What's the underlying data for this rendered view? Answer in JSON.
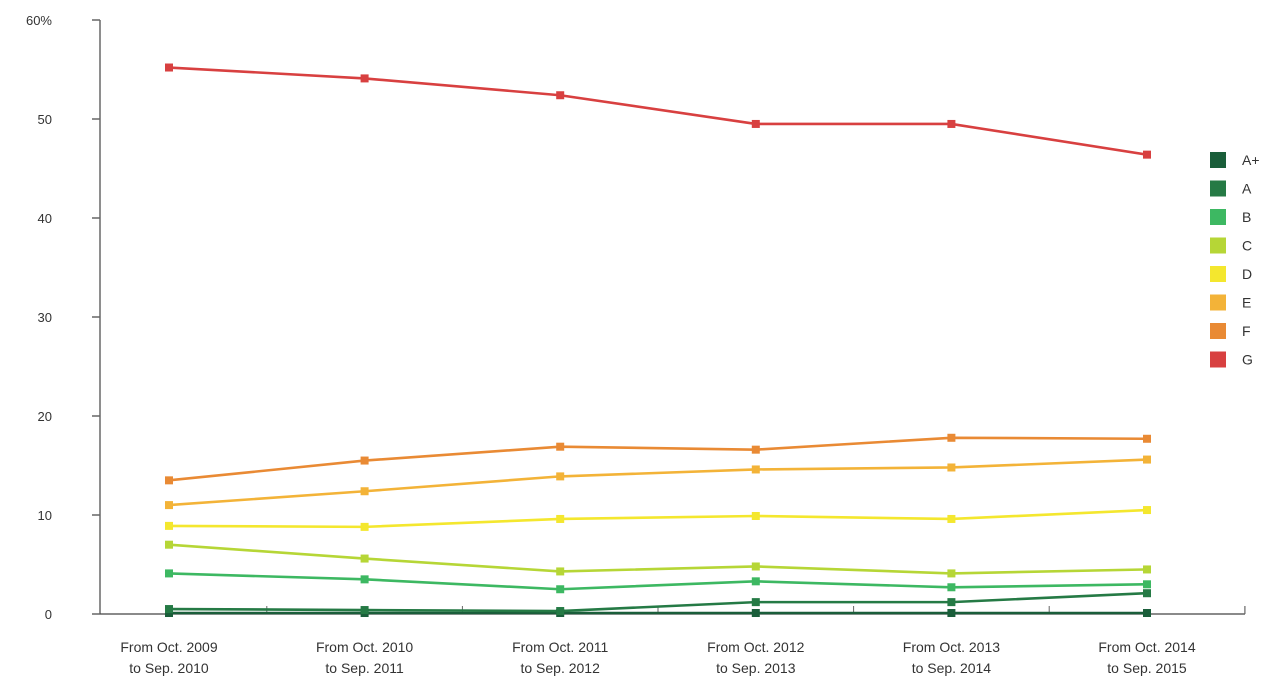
{
  "chart_data": {
    "type": "line",
    "categories": [
      [
        "From Oct. 2009",
        "to Sep. 2010"
      ],
      [
        "From Oct. 2010",
        "to Sep. 2011"
      ],
      [
        "From Oct. 2011",
        "to Sep. 2012"
      ],
      [
        "From Oct. 2012",
        "to Sep. 2013"
      ],
      [
        "From Oct. 2013",
        "to Sep. 2014"
      ],
      [
        "From Oct. 2014",
        "to Sep. 2015"
      ]
    ],
    "ylim": [
      0,
      60
    ],
    "yticks": [
      0,
      10,
      20,
      30,
      40,
      50,
      60
    ],
    "ytick_labels": [
      "0",
      "10",
      "20",
      "30",
      "40",
      "50",
      "60%"
    ],
    "grid": false,
    "legend_position": "right",
    "series": [
      {
        "name": "A+",
        "color": "#1a5e3a",
        "values": [
          0.1,
          0.1,
          0.1,
          0.1,
          0.1,
          0.1
        ]
      },
      {
        "name": "A",
        "color": "#257a45",
        "values": [
          0.5,
          0.4,
          0.3,
          1.2,
          1.2,
          2.1
        ]
      },
      {
        "name": "B",
        "color": "#3db862",
        "values": [
          4.1,
          3.5,
          2.5,
          3.3,
          2.7,
          3.0
        ]
      },
      {
        "name": "C",
        "color": "#b6d636",
        "values": [
          7.0,
          5.6,
          4.3,
          4.8,
          4.1,
          4.5
        ]
      },
      {
        "name": "D",
        "color": "#f4e72e",
        "values": [
          8.9,
          8.8,
          9.6,
          9.9,
          9.6,
          10.5
        ]
      },
      {
        "name": "E",
        "color": "#f3b338",
        "values": [
          11.0,
          12.4,
          13.9,
          14.6,
          14.8,
          15.6
        ]
      },
      {
        "name": "F",
        "color": "#e98a34",
        "values": [
          13.5,
          15.5,
          16.9,
          16.6,
          17.8,
          17.7
        ]
      },
      {
        "name": "G",
        "color": "#d84040",
        "values": [
          55.2,
          54.1,
          52.4,
          49.5,
          49.5,
          46.4
        ]
      }
    ]
  }
}
